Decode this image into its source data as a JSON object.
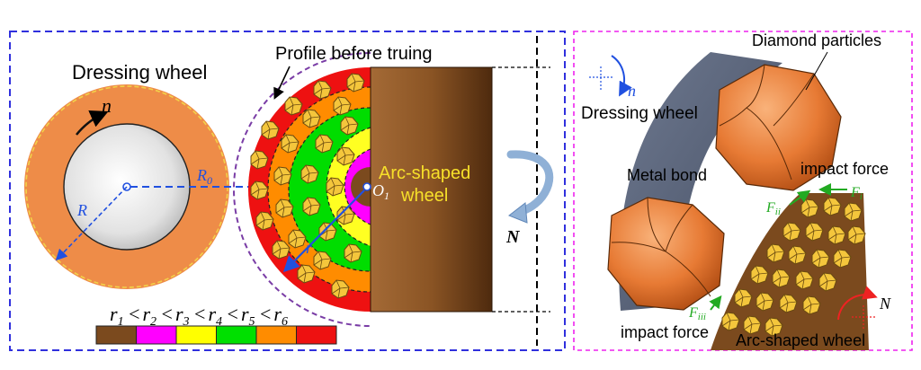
{
  "left_panel": {
    "dressing_wheel_label": "Dressing wheel",
    "rotation_n": "n",
    "radius_R": "R",
    "radius_R0": "R",
    "radius_R0_sub": "0",
    "profile_label": "Profile before  truing",
    "center_O": "O",
    "center_O_sub": "1",
    "arc_wheel_line1": "Arc-shaped",
    "arc_wheel_line2": "wheel",
    "radius_r": "r",
    "rotation_N": "N",
    "legend": {
      "inequality": [
        {
          "sym": "r",
          "sub": "1",
          "op": "<"
        },
        {
          "sym": "r",
          "sub": "2",
          "op": "<"
        },
        {
          "sym": "r",
          "sub": "3",
          "op": "<"
        },
        {
          "sym": "r",
          "sub": "4",
          "op": "<"
        },
        {
          "sym": "r",
          "sub": "5",
          "op": "<"
        },
        {
          "sym": "r",
          "sub": "6",
          "op": ""
        }
      ],
      "colors": [
        "#7b4a1e",
        "#ff00ff",
        "#ffff00",
        "#00e000",
        "#ff8c00",
        "#ee1111"
      ]
    }
  },
  "right_panel": {
    "diamond_particles": "Diamond particles",
    "rotation_n": "n",
    "dressing_wheel": "Dressing wheel",
    "metal_bond": "Metal bond",
    "impact_force_top": "impact force",
    "force_Fi": "F",
    "force_Fi_sub": "i",
    "force_Fii": "F",
    "force_Fii_sub": "ii",
    "force_Fiii": "F",
    "force_Fiii_sub": "iii",
    "impact_force_bottom": "impact force",
    "rotation_N": "N",
    "arc_shaped_wheel": "Arc-shaped wheel"
  },
  "colors": {
    "left_frame": "#3030dd",
    "right_frame": "#ee22ee",
    "wheel_brown": "#6b3d1a",
    "dressing_orange": "#f0924a",
    "grey_wheel": "#5a6478",
    "force_green": "#22aa22"
  }
}
